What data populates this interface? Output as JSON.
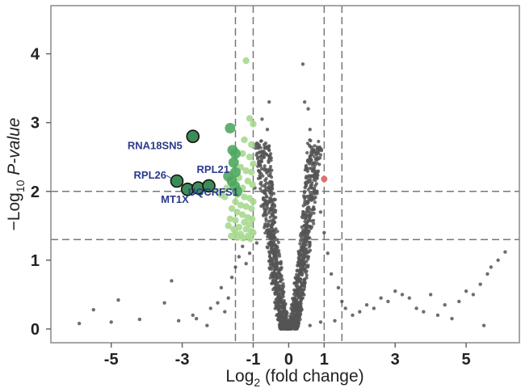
{
  "chart_data": {
    "type": "scatter",
    "title": "",
    "xlabel": {
      "prefix": "Log",
      "sub": "2",
      "suffix": " (fold change)"
    },
    "ylabel": {
      "prefix": "−Log",
      "sub": "10",
      "suffix": " ",
      "italic": "P-value"
    },
    "xlim": [
      -6.7,
      6.5
    ],
    "ylim": [
      -0.2,
      4.7
    ],
    "x_ticks": [
      -5,
      -3,
      -1,
      0,
      1,
      3,
      5
    ],
    "x_tick_labels": [
      "-5",
      "-3",
      "-1",
      "0",
      "1",
      "3",
      "5"
    ],
    "y_ticks": [
      0,
      1,
      2,
      3,
      4
    ],
    "y_tick_labels": [
      "0",
      "1",
      "2",
      "3",
      "4"
    ],
    "grid": false,
    "threshold_lines": {
      "vertical": [
        -1.5,
        -1,
        1,
        1.5
      ],
      "horizontal": [
        1.3,
        2.0
      ],
      "style": "dashed",
      "color": "#777777"
    },
    "colors": {
      "not_significant": "#555555",
      "down_light": "#a7d98f",
      "down_strong": "#4fa860",
      "highlighted": "#3d8c55",
      "up": "#e07070",
      "label": "#2b3a8c"
    },
    "series": [
      {
        "group": "highlighted",
        "points": [
          {
            "x": -2.7,
            "y": 2.8,
            "label": "RNA18SN5"
          },
          {
            "x": -3.15,
            "y": 2.15,
            "label": "RPL26"
          },
          {
            "x": -2.85,
            "y": 2.03,
            "label": "MT1X"
          },
          {
            "x": -2.55,
            "y": 2.05,
            "label": ""
          },
          {
            "x": -2.25,
            "y": 2.08,
            "label": "RPL21"
          }
        ]
      },
      {
        "group": "down_strong",
        "points": [
          [
            -1.65,
            2.92
          ],
          [
            -1.5,
            2.55
          ],
          [
            -1.55,
            2.42
          ],
          [
            -1.5,
            2.28
          ],
          [
            -1.6,
            2.15
          ],
          [
            -1.52,
            2.08
          ],
          [
            -1.45,
            2.0
          ],
          [
            -1.7,
            2.22
          ],
          [
            -1.58,
            2.6
          ]
        ]
      },
      {
        "group": "down_light",
        "points": [
          [
            -1.2,
            3.9
          ],
          [
            -1.1,
            3.06
          ],
          [
            -1.0,
            2.98
          ],
          [
            -1.25,
            2.75
          ],
          [
            -1.05,
            2.68
          ],
          [
            -1.3,
            2.55
          ],
          [
            -1.1,
            2.5
          ],
          [
            -1.35,
            2.35
          ],
          [
            -1.2,
            2.3
          ],
          [
            -1.05,
            2.28
          ],
          [
            -1.4,
            2.2
          ],
          [
            -1.15,
            2.15
          ],
          [
            -1.3,
            2.05
          ],
          [
            -1.45,
            1.95
          ],
          [
            -1.25,
            1.92
          ],
          [
            -1.1,
            1.9
          ],
          [
            -1.5,
            1.85
          ],
          [
            -1.35,
            1.8
          ],
          [
            -1.2,
            1.78
          ],
          [
            -1.05,
            1.75
          ],
          [
            -1.45,
            1.7
          ],
          [
            -1.3,
            1.66
          ],
          [
            -1.15,
            1.62
          ],
          [
            -1.5,
            1.58
          ],
          [
            -1.25,
            1.55
          ],
          [
            -1.1,
            1.52
          ],
          [
            -1.4,
            1.48
          ],
          [
            -1.2,
            1.45
          ],
          [
            -1.05,
            1.42
          ],
          [
            -1.5,
            1.4
          ],
          [
            -1.35,
            1.38
          ],
          [
            -1.15,
            1.35
          ],
          [
            -1.45,
            1.33
          ],
          [
            -1.28,
            1.32
          ],
          [
            -1.08,
            1.31
          ],
          [
            -1.8,
            1.92
          ],
          [
            -1.9,
            1.95
          ],
          [
            -2.0,
            2.0
          ],
          [
            -1.75,
            2.05
          ],
          [
            -1.6,
            1.75
          ],
          [
            -1.65,
            1.6
          ],
          [
            -1.7,
            1.5
          ],
          [
            -1.55,
            1.45
          ],
          [
            -1.62,
            1.35
          ],
          [
            -1.0,
            2.4
          ],
          [
            -1.02,
            2.1
          ],
          [
            -1.0,
            1.85
          ],
          [
            -1.03,
            1.6
          ],
          [
            -1.0,
            1.4
          ]
        ]
      },
      {
        "group": "up",
        "points": [
          [
            1.0,
            2.18
          ]
        ]
      },
      {
        "group": "not_significant_scattered",
        "points": [
          [
            -5.9,
            0.08
          ],
          [
            -5.5,
            0.28
          ],
          [
            -5.0,
            0.1
          ],
          [
            -4.8,
            0.42
          ],
          [
            -4.2,
            0.14
          ],
          [
            -3.5,
            0.38
          ],
          [
            -3.3,
            0.7
          ],
          [
            -3.1,
            0.12
          ],
          [
            -2.7,
            0.2
          ],
          [
            -2.6,
            0.15
          ],
          [
            -2.3,
            0.05
          ],
          [
            -2.2,
            0.3
          ],
          [
            -2.0,
            0.38
          ],
          [
            -1.9,
            0.6
          ],
          [
            -1.8,
            0.25
          ],
          [
            -1.7,
            0.45
          ],
          [
            -1.6,
            0.75
          ],
          [
            -1.5,
            0.9
          ],
          [
            -1.4,
            1.05
          ],
          [
            -1.3,
            1.2
          ],
          [
            -1.2,
            0.95
          ],
          [
            -1.1,
            1.1
          ],
          [
            -0.9,
            1.25
          ],
          [
            -0.8,
            2.2
          ],
          [
            -0.7,
            2.5
          ],
          [
            -0.6,
            2.9
          ],
          [
            -0.55,
            3.3
          ],
          [
            -0.75,
            3.05
          ],
          [
            -0.65,
            2.7
          ],
          [
            -0.85,
            2.3
          ],
          [
            -0.95,
            2.05
          ],
          [
            0.4,
            3.85
          ],
          [
            0.45,
            3.3
          ],
          [
            0.55,
            3.2
          ],
          [
            0.6,
            2.9
          ],
          [
            0.65,
            2.6
          ],
          [
            0.7,
            2.3
          ],
          [
            0.8,
            2.0
          ],
          [
            0.9,
            1.7
          ],
          [
            1.0,
            1.4
          ],
          [
            1.1,
            1.1
          ],
          [
            1.2,
            0.8
          ],
          [
            1.4,
            0.6
          ],
          [
            1.5,
            0.4
          ],
          [
            1.6,
            0.3
          ],
          [
            1.8,
            0.2
          ],
          [
            2.0,
            0.25
          ],
          [
            2.2,
            0.35
          ],
          [
            2.4,
            0.3
          ],
          [
            2.6,
            0.45
          ],
          [
            2.8,
            0.4
          ],
          [
            3.0,
            0.55
          ],
          [
            3.2,
            0.5
          ],
          [
            3.4,
            0.45
          ],
          [
            3.6,
            0.3
          ],
          [
            3.8,
            0.25
          ],
          [
            4.0,
            0.5
          ],
          [
            4.2,
            0.2
          ],
          [
            4.4,
            0.35
          ],
          [
            4.6,
            0.15
          ],
          [
            4.8,
            0.4
          ],
          [
            5.0,
            0.55
          ],
          [
            5.2,
            0.5
          ],
          [
            5.4,
            0.65
          ],
          [
            5.6,
            0.8
          ],
          [
            5.7,
            0.9
          ],
          [
            5.9,
            1.0
          ],
          [
            6.1,
            1.12
          ],
          [
            5.5,
            0.05
          ],
          [
            0.6,
            0.05
          ],
          [
            0.9,
            0.1
          ],
          [
            1.3,
            0.12
          ]
        ]
      },
      {
        "group": "not_significant_volcano",
        "description_counts": {
          "n": 1400
        },
        "envelope": {
          "x_center": 0,
          "left_max_x": -1.0,
          "right_max_x": 0.95,
          "y_max": 2.75
        }
      }
    ],
    "annotations": [
      {
        "text": "RNA18SN5",
        "x": -2.7,
        "y": 2.8
      },
      {
        "text": "RPL26",
        "x": -3.15,
        "y": 2.15
      },
      {
        "text": "RPL21",
        "x": -2.25,
        "y": 2.08
      },
      {
        "text": "MT1X",
        "x": -2.85,
        "y": 2.03
      },
      {
        "text": "UQCRFS1",
        "x": -0.9,
        "y": 2.0
      }
    ]
  }
}
